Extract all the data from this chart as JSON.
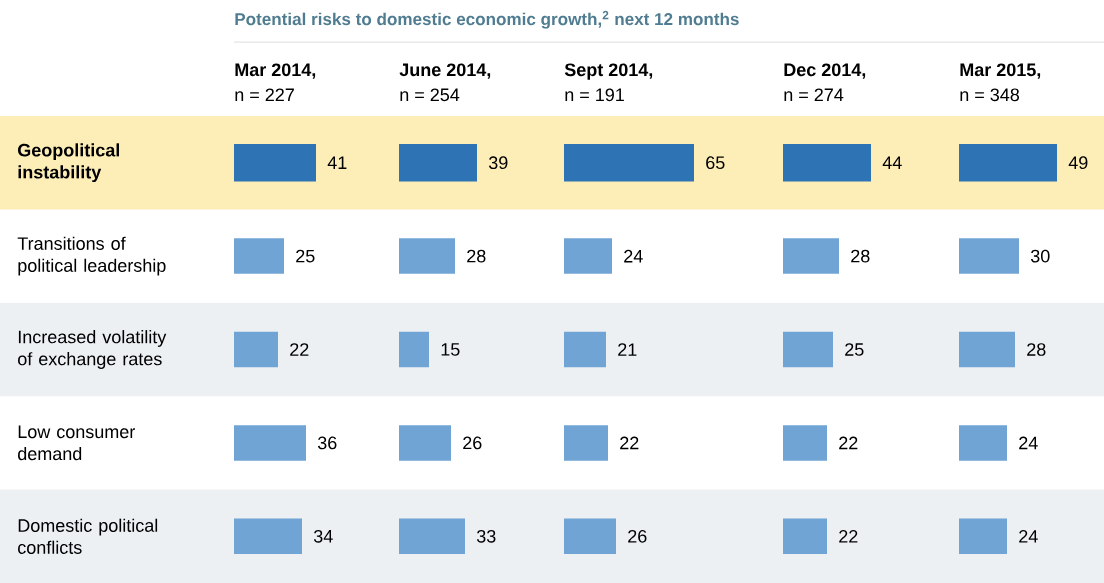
{
  "chart_data": [
    {
      "type": "bar",
      "orientation": "horizontal",
      "title": "Mar 2014,",
      "subtitle": "n = 227",
      "annotations": [
        "Potential risks to domestic economic growth,$^{2}$ next 12 months"
      ],
      "categories": [
        "Geopolitical instability",
        "Transitions of political leadership",
        "Increased volatility of exchange rates",
        "Low consumer demand",
        "Domestic political conflicts"
      ],
      "values": [
        41,
        25,
        22,
        36,
        34
      ],
      "colors": [
        "#2e74b5",
        "#6fa4d4",
        "#6fa4d4",
        "#6fa4d4",
        "#6fa4d4"
      ],
      "data_labels": true,
      "tick_labels": "y",
      "bands": [
        {
          "axis": "y",
          "from": "Geopolitical instability",
          "to": "Geopolitical instability",
          "color": "#fdedb6"
        }
      ]
    },
    {
      "type": "bar",
      "orientation": "horizontal",
      "title": "June 2014,",
      "subtitle": "n = 254",
      "categories": [
        null,
        null,
        null,
        null,
        null
      ],
      "values": [
        39,
        28,
        15,
        26,
        33
      ],
      "colors": [
        "#2e74b5",
        "#6fa4d4",
        "#6fa4d4",
        "#6fa4d4",
        "#6fa4d4"
      ],
      "data_labels": true,
      "tick_labels": false
    },
    {
      "type": "bar",
      "orientation": "horizontal",
      "title": "Sept 2014,",
      "subtitle": "n = 191",
      "categories": [
        null,
        null,
        null,
        null,
        null
      ],
      "values": [
        65,
        24,
        21,
        22,
        26
      ],
      "colors": [
        "#2e74b5",
        "#6fa4d4",
        "#6fa4d4",
        "#6fa4d4",
        "#6fa4d4"
      ],
      "data_labels": true,
      "tick_labels": false
    },
    {
      "type": "bar",
      "orientation": "horizontal",
      "title": "Dec 2014,",
      "subtitle": "n = 274",
      "categories": [
        null,
        null,
        null,
        null,
        null
      ],
      "values": [
        44,
        28,
        25,
        22,
        22
      ],
      "colors": [
        "#2e74b5",
        "#6fa4d4",
        "#6fa4d4",
        "#6fa4d4",
        "#6fa4d4"
      ],
      "data_labels": true,
      "tick_labels": false
    },
    {
      "type": "bar",
      "orientation": "horizontal",
      "title": "Mar 2015,",
      "subtitle": "n = 348",
      "categories": [
        null,
        null,
        null,
        null,
        null
      ],
      "values": [
        49,
        30,
        28,
        24,
        24
      ],
      "colors": [
        "#2e74b5",
        "#6fa4d4",
        "#6fa4d4",
        "#6fa4d4",
        "#6fa4d4"
      ],
      "data_labels": true,
      "tick_labels": false
    }
  ]
}
